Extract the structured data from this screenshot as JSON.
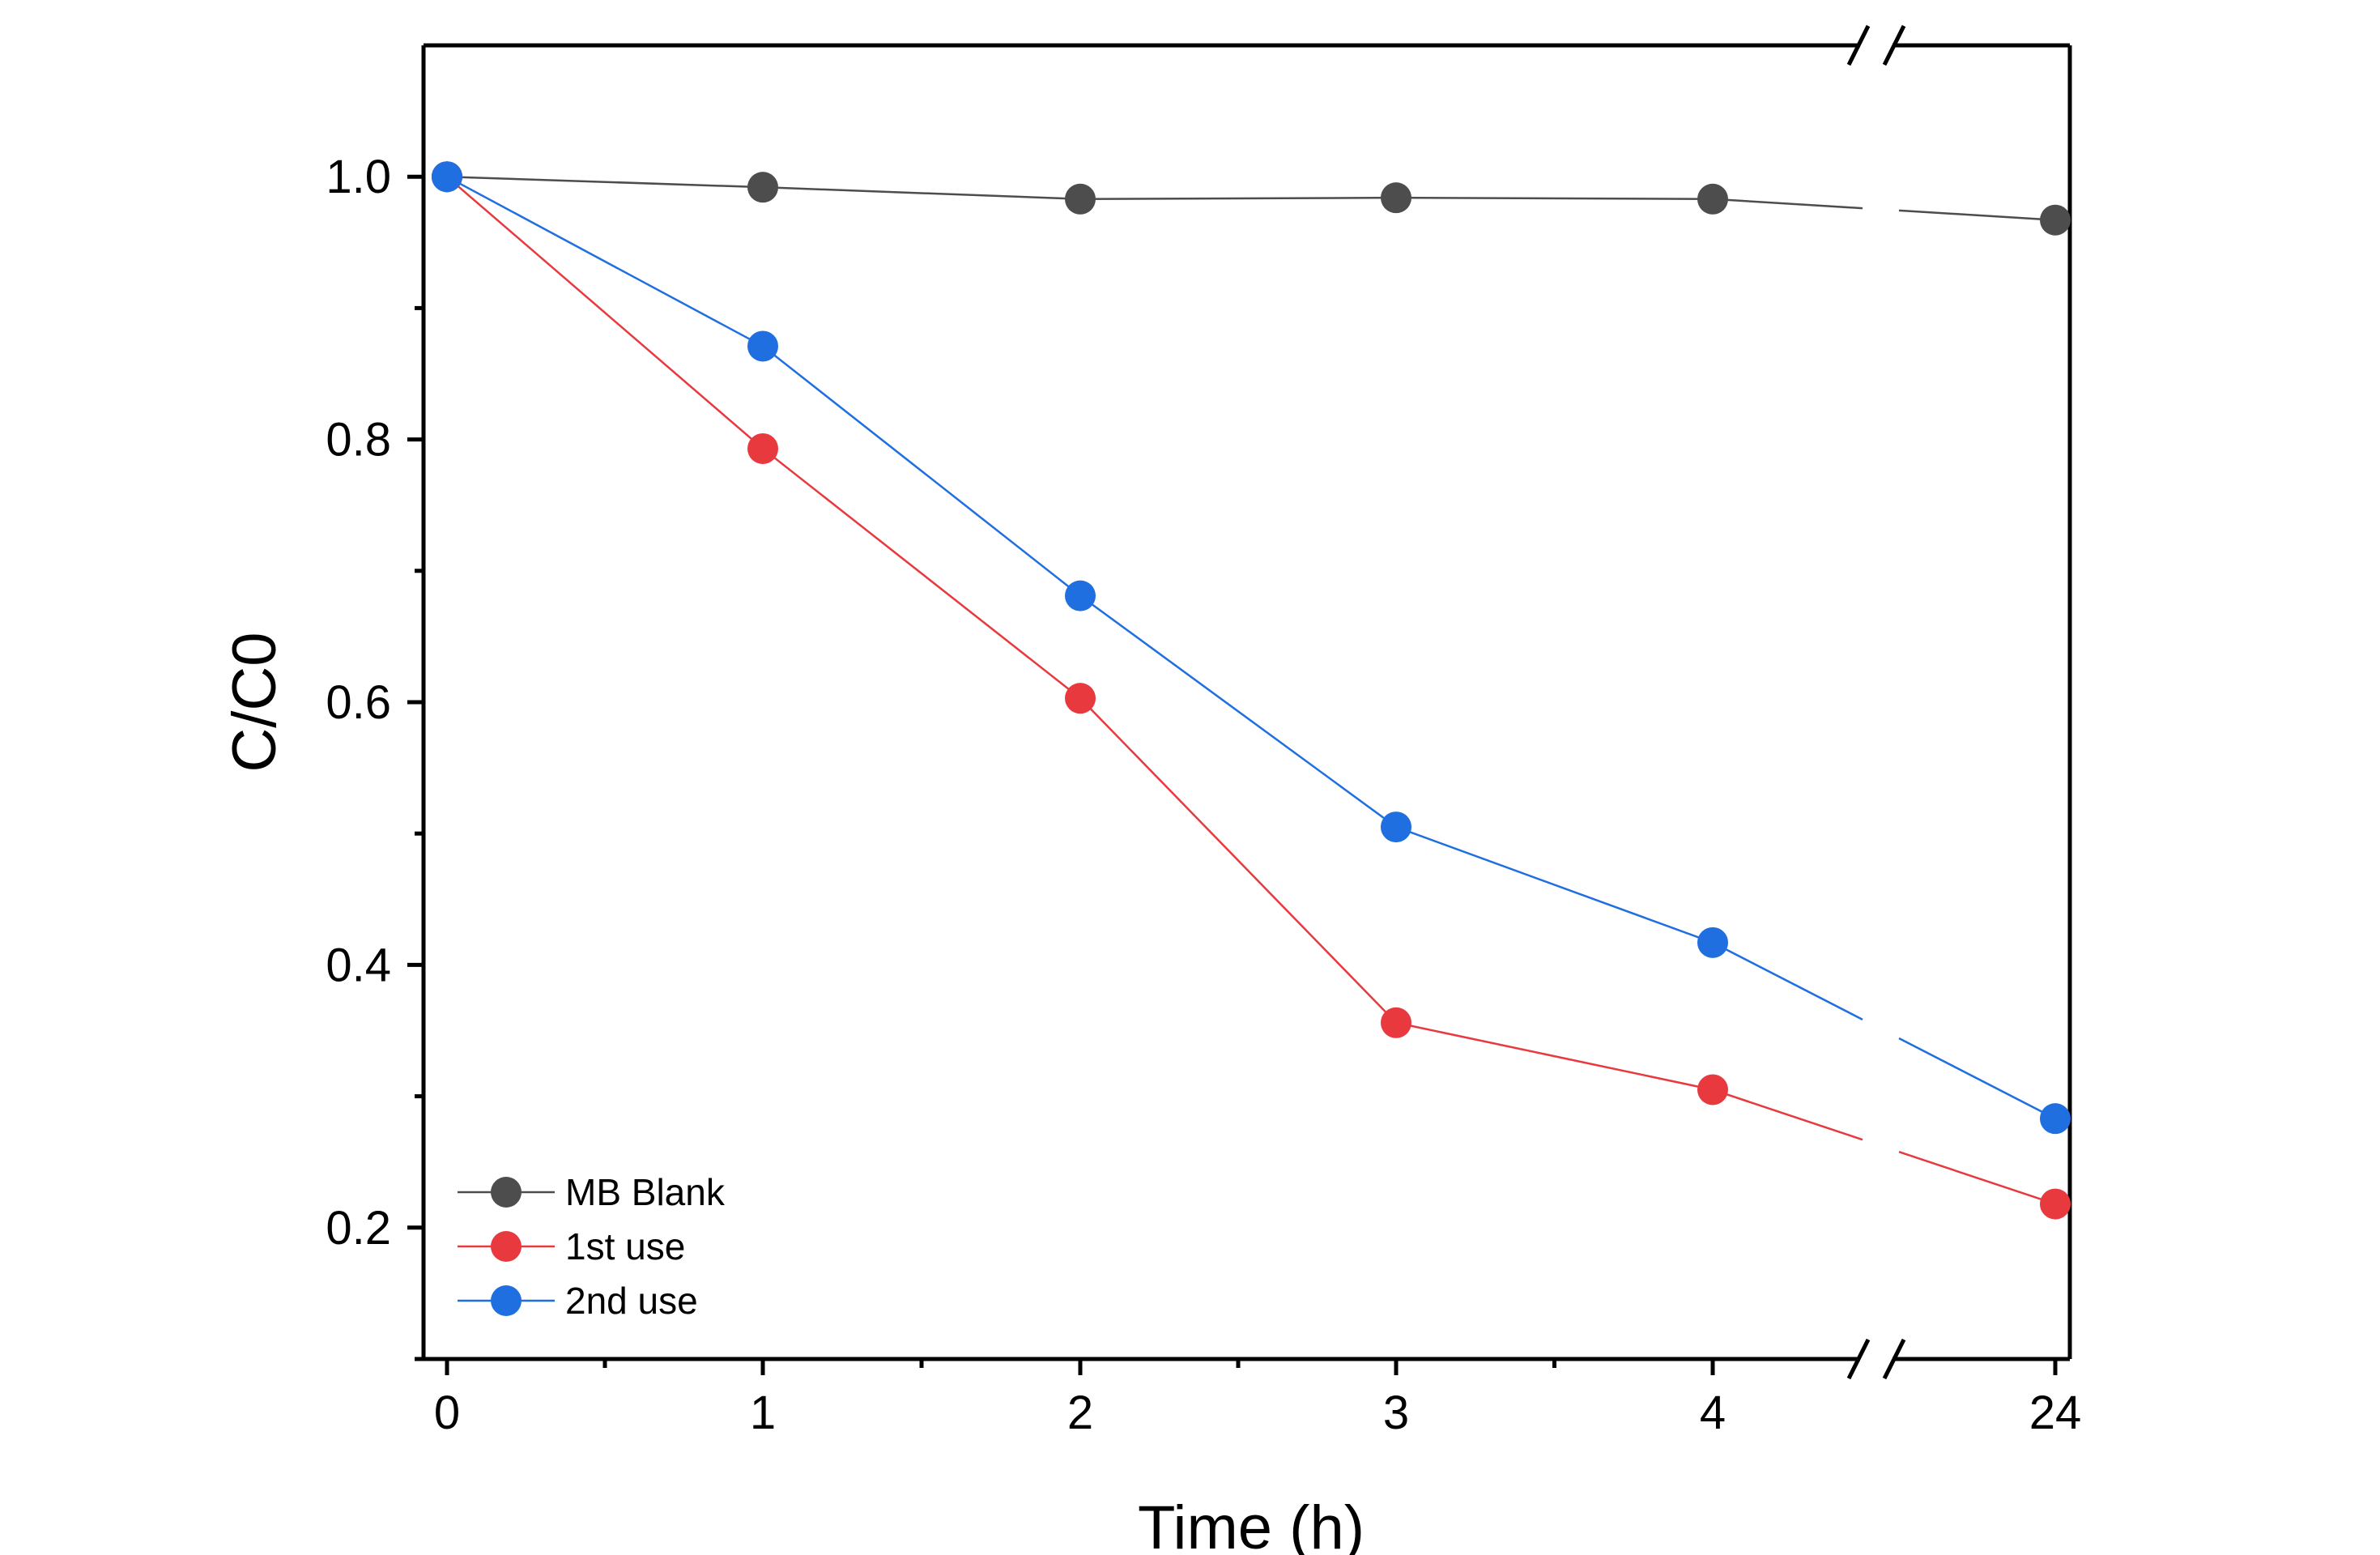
{
  "chart_data": {
    "type": "line",
    "title": "",
    "xlabel": "Time (h)",
    "ylabel": "C/C0",
    "x_tick_labels": [
      "0",
      "1",
      "2",
      "3",
      "4",
      "24"
    ],
    "x": [
      0,
      1,
      2,
      3,
      4,
      24
    ],
    "x_axis_break": "between 4 and 24",
    "ylim": [
      0.1,
      1.1
    ],
    "y_ticks": [
      0.2,
      0.4,
      0.6,
      0.8,
      1.0
    ],
    "y_tick_labels": [
      "0.2",
      "0.4",
      "0.6",
      "0.8",
      "1.0"
    ],
    "grid": false,
    "legend_position": "bottom-left",
    "marker": "circle",
    "series": [
      {
        "name": "MB Blank",
        "color": "#4d4d4d",
        "values": [
          1.0,
          0.992,
          0.983,
          0.984,
          0.983,
          0.967
        ]
      },
      {
        "name": "1st use",
        "color": "#e8393f",
        "values": [
          1.0,
          0.793,
          0.603,
          0.356,
          0.305,
          0.218
        ]
      },
      {
        "name": "2nd use",
        "color": "#1f6fe0",
        "values": [
          1.0,
          0.871,
          0.681,
          0.505,
          0.417,
          0.283
        ]
      }
    ]
  }
}
